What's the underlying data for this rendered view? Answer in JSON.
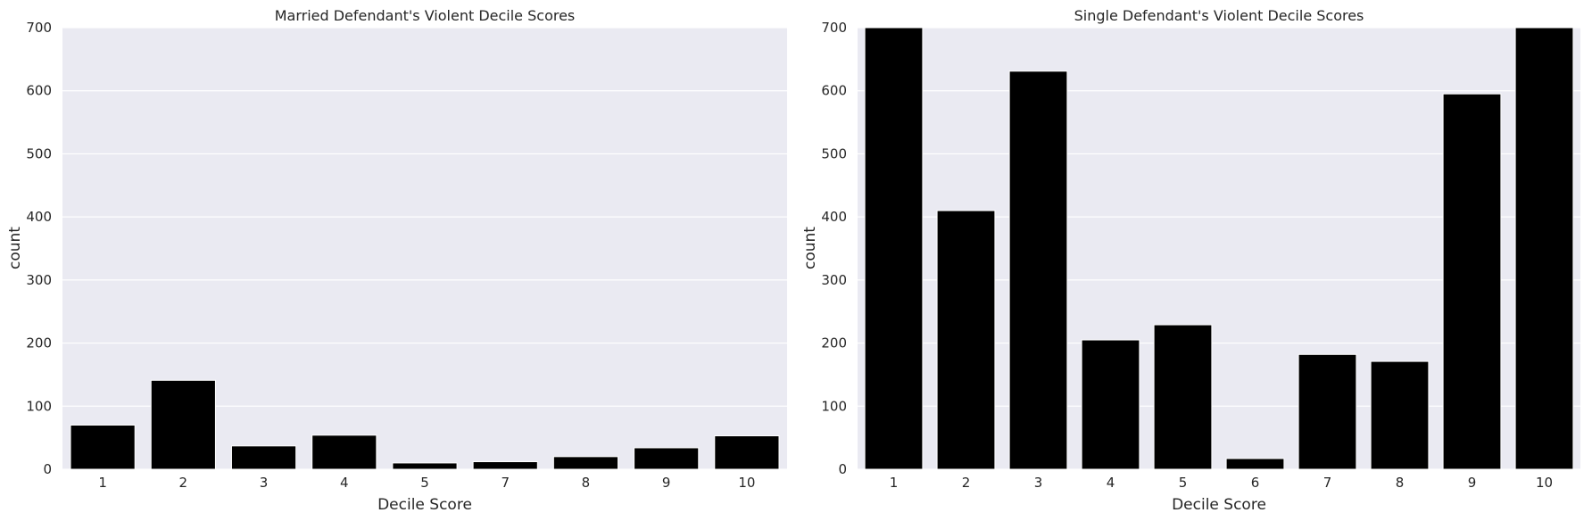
{
  "chart_data": [
    {
      "type": "bar",
      "title": "Married Defendant's Violent Decile Scores",
      "xlabel": "Decile Score",
      "ylabel": "count",
      "categories": [
        "1",
        "2",
        "3",
        "4",
        "5",
        "7",
        "8",
        "9",
        "10"
      ],
      "values": [
        70,
        141,
        37,
        54,
        10,
        12,
        20,
        34,
        53
      ],
      "ylim": [
        0,
        700
      ],
      "yticks": [
        "0",
        "100",
        "200",
        "300",
        "400",
        "500",
        "600",
        "700"
      ],
      "grid": true,
      "bar_color": "#000000",
      "background_color": "#eaeaf2"
    },
    {
      "type": "bar",
      "title": "Single Defendant's Violent Decile Scores",
      "xlabel": "Decile Score",
      "ylabel": "count",
      "categories": [
        "1",
        "2",
        "3",
        "4",
        "5",
        "6",
        "7",
        "8",
        "9",
        "10"
      ],
      "values": [
        700,
        410,
        631,
        205,
        229,
        17,
        182,
        171,
        595,
        700
      ],
      "ylim": [
        0,
        700
      ],
      "yticks": [
        "0",
        "100",
        "200",
        "300",
        "400",
        "500",
        "600",
        "700"
      ],
      "grid": true,
      "bar_color": "#000000",
      "background_color": "#eaeaf2"
    }
  ]
}
